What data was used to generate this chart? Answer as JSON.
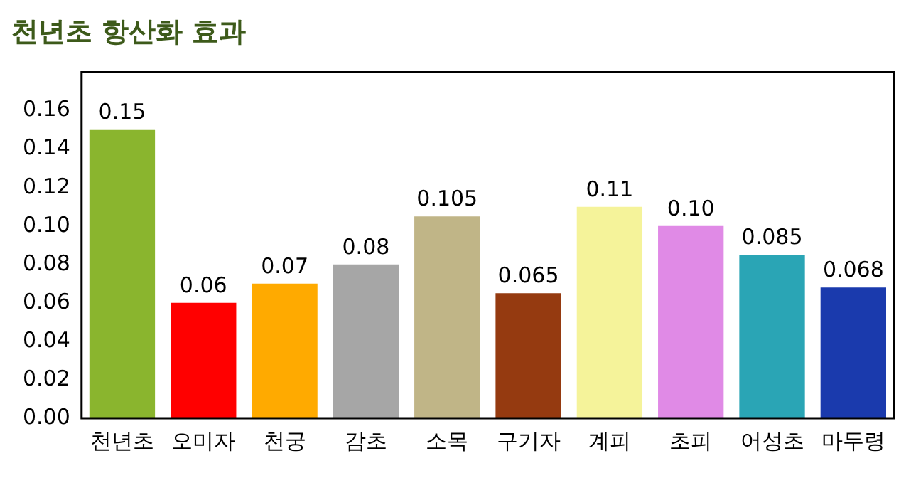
{
  "chart_data": {
    "type": "bar",
    "title": "천년초 항산화 효과",
    "categories": [
      "천년초",
      "오미자",
      "천궁",
      "감초",
      "소목",
      "구기자",
      "계피",
      "초피",
      "어성초",
      "마두령"
    ],
    "values": [
      0.15,
      0.06,
      0.07,
      0.08,
      0.105,
      0.065,
      0.11,
      0.1,
      0.085,
      0.068
    ],
    "value_labels": [
      "0.15",
      "0.06",
      "0.07",
      "0.08",
      "0.105",
      "0.065",
      "0.11",
      "0.10",
      "0.085",
      "0.068"
    ],
    "colors": [
      "#8ab52e",
      "#ff0000",
      "#ffaa00",
      "#a6a6a6",
      "#c0b587",
      "#953a10",
      "#f5f39a",
      "#e08ae6",
      "#2aa5b5",
      "#1a3aad"
    ],
    "ylim": [
      0,
      0.18
    ],
    "yticks": [
      {
        "value": 0,
        "label": "0.00"
      },
      {
        "value": 0.02,
        "label": "0.02"
      },
      {
        "value": 0.04,
        "label": "0.04"
      },
      {
        "value": 0.06,
        "label": "0.06"
      },
      {
        "value": 0.08,
        "label": "0.08"
      },
      {
        "value": 0.1,
        "label": "0.10"
      },
      {
        "value": 0.12,
        "label": "0.12"
      },
      {
        "value": 0.14,
        "label": "0.14"
      },
      {
        "value": 0.16,
        "label": "0.16"
      }
    ],
    "grid": false,
    "legend": false
  }
}
